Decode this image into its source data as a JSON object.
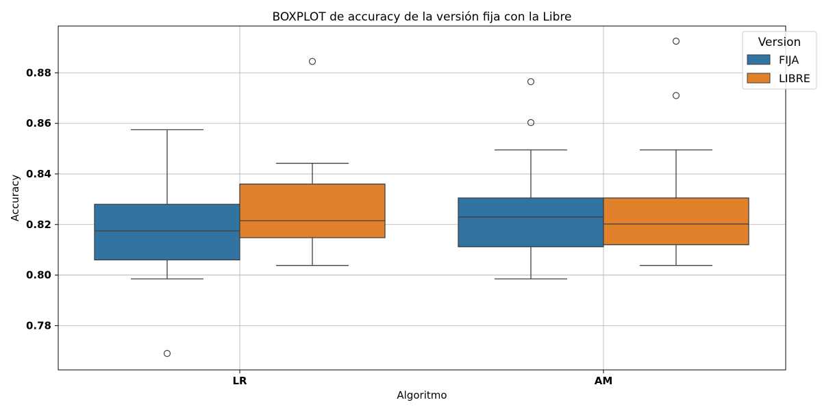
{
  "chart_data": {
    "type": "boxplot",
    "title": "BOXPLOT de accuracy de la versión fija con la Libre",
    "xlabel": "Algoritmo",
    "ylabel": "Accuracy",
    "ylim": [
      0.7625,
      0.8985
    ],
    "yticks": [
      0.78,
      0.8,
      0.82,
      0.84,
      0.86,
      0.88
    ],
    "ytick_labels": [
      "0.78",
      "0.80",
      "0.82",
      "0.84",
      "0.86",
      "0.88"
    ],
    "categories": [
      "LR",
      "AM"
    ],
    "grid": true,
    "legend": {
      "title": "Version",
      "placement": "top-right"
    },
    "series": [
      {
        "name": "FIJA",
        "color": "#3274a1",
        "boxes": [
          {
            "category": "LR",
            "whisker_low": 0.7985,
            "q1": 0.806,
            "median": 0.8175,
            "q3": 0.828,
            "whisker_high": 0.8575,
            "outliers": [
              0.769
            ]
          },
          {
            "category": "AM",
            "whisker_low": 0.7985,
            "q1": 0.8112,
            "median": 0.823,
            "q3": 0.8305,
            "whisker_high": 0.8495,
            "outliers": [
              0.8603,
              0.8765
            ]
          }
        ]
      },
      {
        "name": "LIBRE",
        "color": "#e1812c",
        "boxes": [
          {
            "category": "LR",
            "whisker_low": 0.8038,
            "q1": 0.8148,
            "median": 0.8215,
            "q3": 0.836,
            "whisker_high": 0.8442,
            "outliers": [
              0.8845
            ]
          },
          {
            "category": "AM",
            "whisker_low": 0.8038,
            "q1": 0.812,
            "median": 0.8202,
            "q3": 0.8305,
            "whisker_high": 0.8495,
            "outliers": [
              0.871,
              0.8925
            ]
          }
        ]
      }
    ]
  }
}
